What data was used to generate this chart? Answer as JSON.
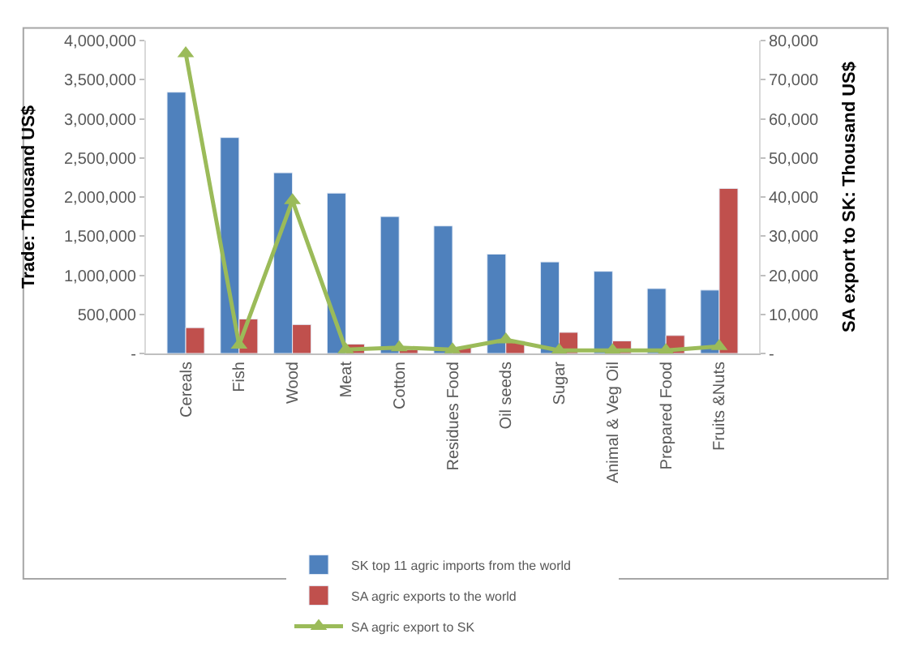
{
  "chart_data": {
    "type": "bar",
    "ylabel": "Trade: Thousand US$",
    "y2label": "SA export to SK: Thousand US$",
    "categories": [
      "Cereals",
      "Fish",
      "Wood",
      "Meat",
      "Cotton",
      "Residues Food",
      "Oil seeds",
      "Sugar",
      "Animal & Veg Oil",
      "Prepared Food",
      "Fruits &Nuts"
    ],
    "series": [
      {
        "name": "SK top 11 agric imports from the world",
        "color": "#4f81bd",
        "values": [
          3340000,
          2760000,
          2310000,
          2050000,
          1750000,
          1630000,
          1270000,
          1170000,
          1050000,
          830000,
          810000
        ]
      },
      {
        "name": "SA agric exports to the world",
        "color": "#c0504d",
        "values": [
          330000,
          440000,
          370000,
          120000,
          50000,
          80000,
          160000,
          270000,
          160000,
          230000,
          2110000
        ]
      },
      {
        "name": "SA agric export to SK",
        "type": "line",
        "axis": "y2",
        "color": "#9bbb59",
        "marker": "triangle",
        "values": [
          76700,
          2200,
          39100,
          1000,
          1500,
          1000,
          3500,
          800,
          800,
          800,
          1800
        ]
      }
    ],
    "ylim": [
      0,
      4000000
    ],
    "yticks": [
      {
        "value": 0,
        "label": "-"
      },
      {
        "value": 500000,
        "label": "500,000"
      },
      {
        "value": 1000000,
        "label": "1,000,000"
      },
      {
        "value": 1500000,
        "label": "1,500,000"
      },
      {
        "value": 2000000,
        "label": "2,000,000"
      },
      {
        "value": 2500000,
        "label": "2,500,000"
      },
      {
        "value": 3000000,
        "label": "3,000,000"
      },
      {
        "value": 3500000,
        "label": "3,500,000"
      },
      {
        "value": 4000000,
        "label": "4,000,000"
      }
    ],
    "y2lim": [
      0,
      80000
    ],
    "y2ticks": [
      {
        "value": 0,
        "label": "-"
      },
      {
        "value": 10000,
        "label": "10,000"
      },
      {
        "value": 20000,
        "label": "20,000"
      },
      {
        "value": 30000,
        "label": "30,000"
      },
      {
        "value": 40000,
        "label": "40,000"
      },
      {
        "value": 50000,
        "label": "50,000"
      },
      {
        "value": 60000,
        "label": "60,000"
      },
      {
        "value": 70000,
        "label": "70,000"
      },
      {
        "value": 80000,
        "label": "80,000"
      }
    ],
    "legend": "bottom"
  }
}
